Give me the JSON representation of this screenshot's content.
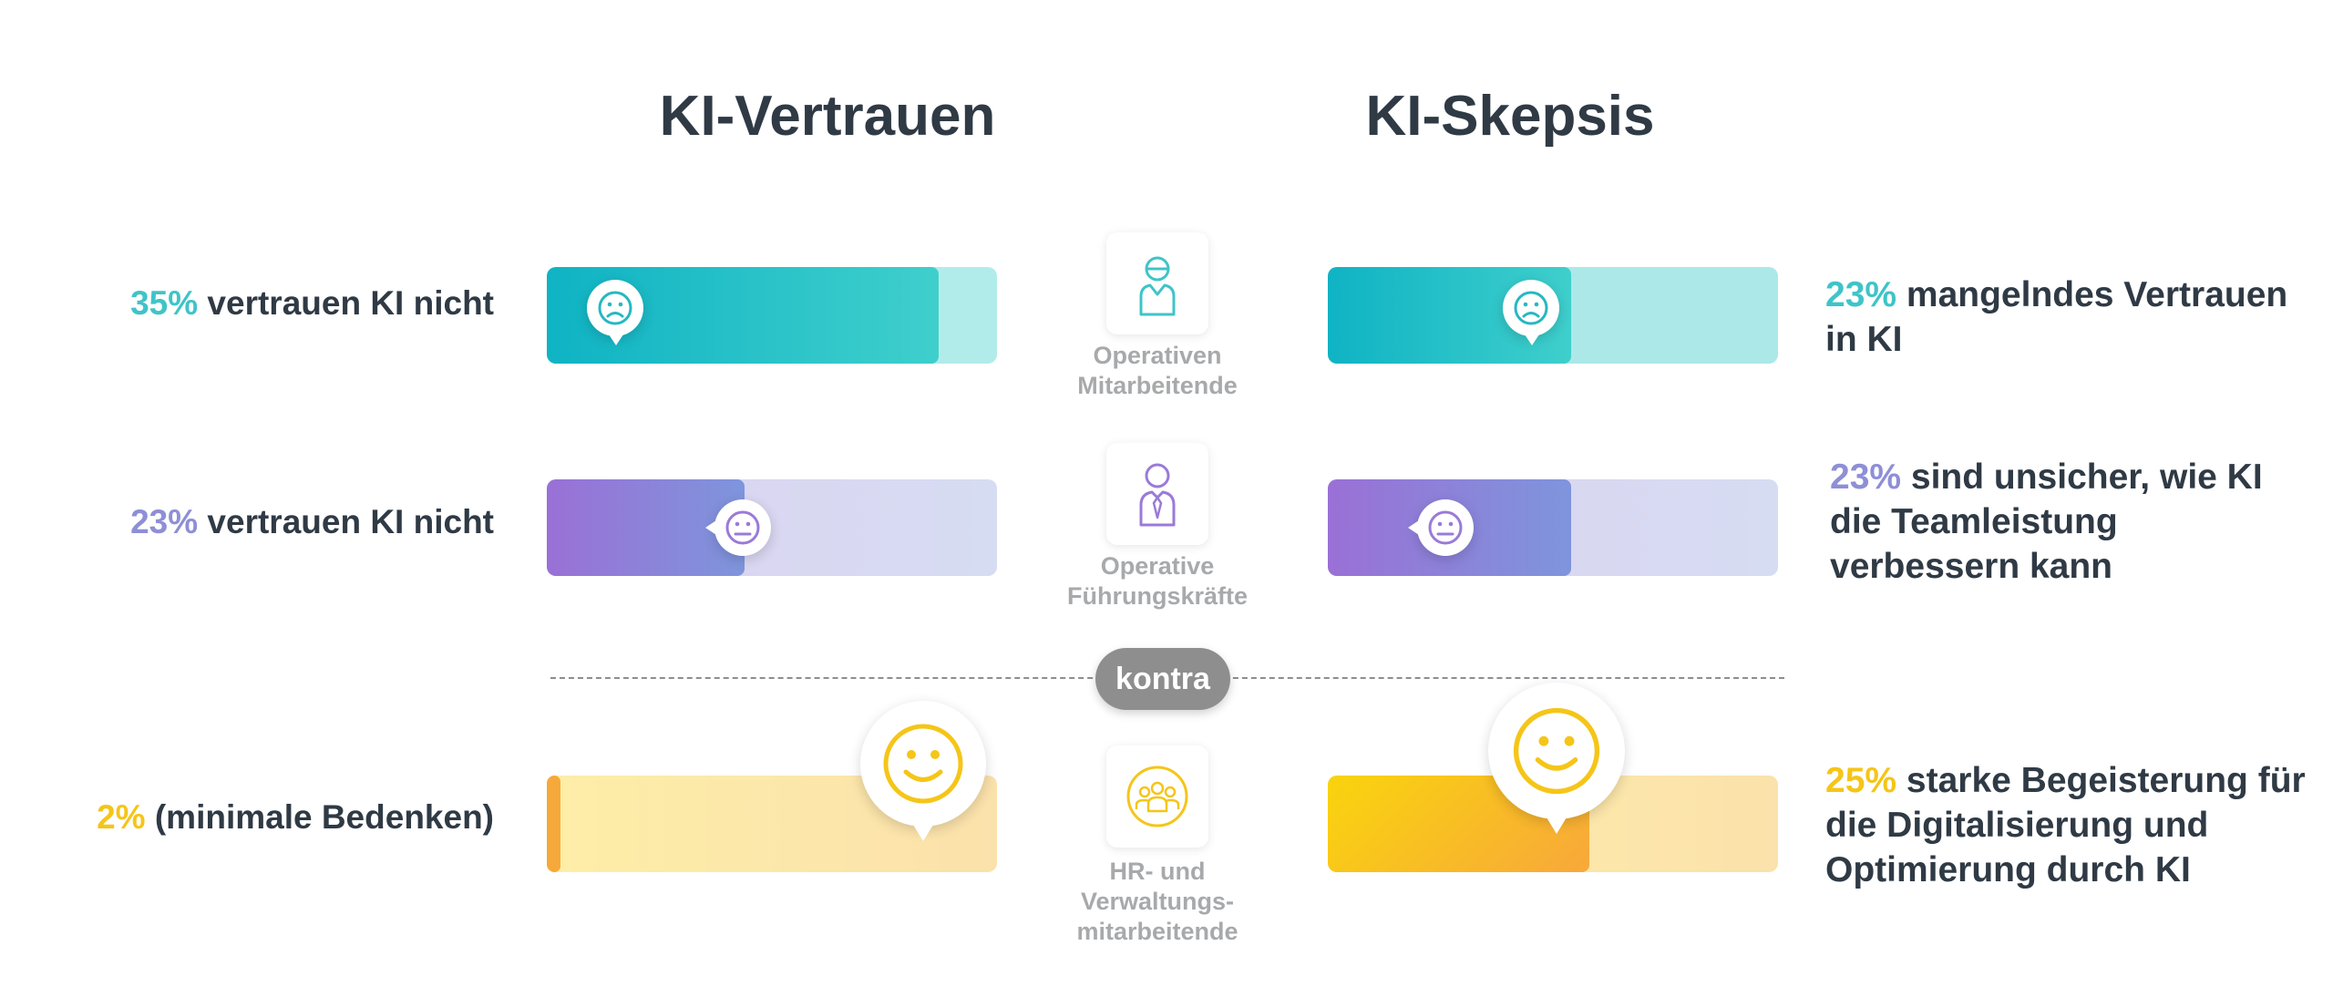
{
  "chart_data": {
    "type": "bar",
    "title": "",
    "columns": [
      "KI-Vertrauen",
      "KI-Skepsis"
    ],
    "divider_label": "kontra",
    "rows": [
      {
        "role": [
          "Operativen",
          "Mitarbeitende"
        ],
        "role_icon": "worker-icon",
        "color": "#1fb8c4",
        "left": {
          "pct": "35%",
          "text": "vertrauen KI nicht",
          "value": 35,
          "fill_fraction": 0.87,
          "emoji": "sad-face-icon"
        },
        "right": {
          "pct": "23%",
          "text": "mangelndes Vertrauen in KI",
          "value": 23,
          "fill_fraction": 0.54,
          "emoji": "sad-face-icon"
        }
      },
      {
        "role": [
          "Operative",
          "Führungskräfte"
        ],
        "role_icon": "manager-icon",
        "color": "#9b7ad8",
        "left": {
          "pct": "23%",
          "text": "vertrauen KI nicht",
          "value": 23,
          "fill_fraction": 0.44,
          "emoji": "neutral-face-icon"
        },
        "right": {
          "pct": "23%",
          "text": "sind unsicher, wie KI die Teamleistung verbessern kann",
          "value": 23,
          "fill_fraction": 0.54,
          "emoji": "neutral-face-icon"
        }
      },
      {
        "role": [
          "HR- und",
          "Verwaltungs-",
          "mitarbeitende"
        ],
        "role_icon": "team-icon",
        "color": "#f5c518",
        "left": {
          "pct": "2%",
          "text": "(minimale Bedenken)",
          "value": 2,
          "fill_fraction": 0.03,
          "emoji": "happy-face-icon"
        },
        "right": {
          "pct": "25%",
          "text": "starke Begeisterung für die Digitalisierung und Optimierung durch KI",
          "value": 25,
          "fill_fraction": 0.58,
          "emoji": "happy-face-icon"
        }
      }
    ]
  },
  "colors": {
    "teal_pct": "#3fc4c8",
    "purple_pct": "#8e8fd6",
    "yellow_pct": "#f5c518"
  }
}
